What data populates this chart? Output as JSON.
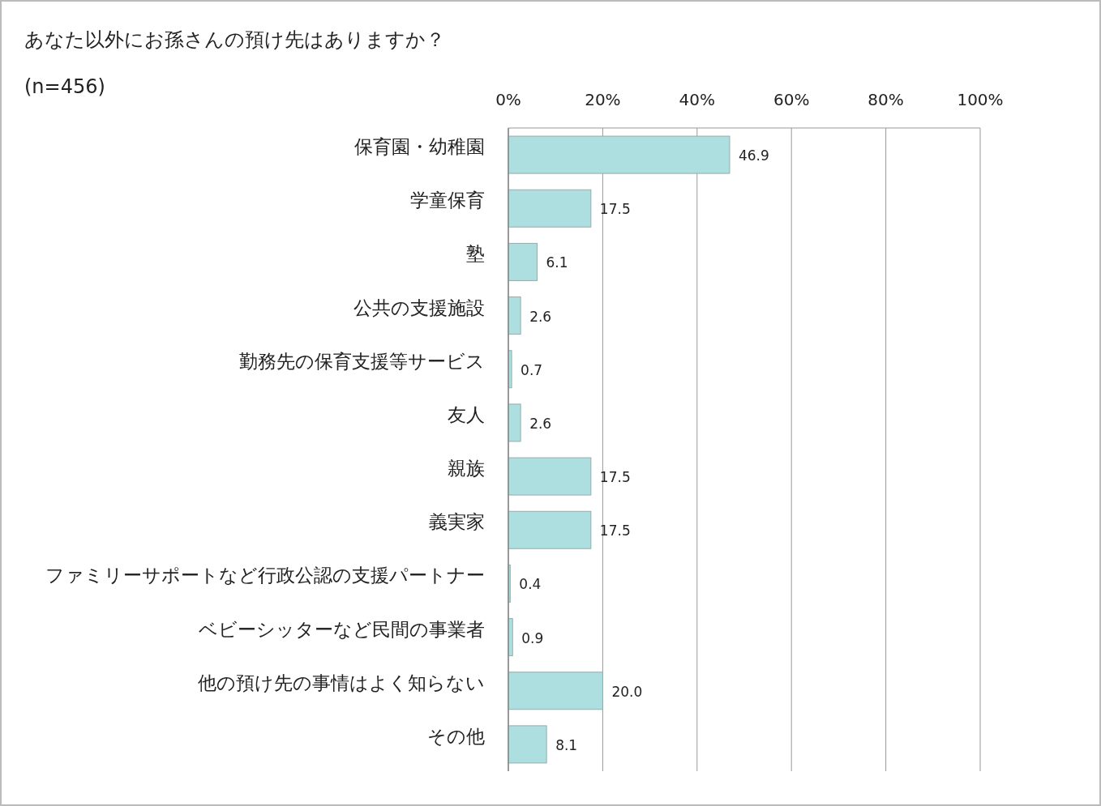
{
  "chart_data": {
    "type": "bar",
    "orientation": "horizontal",
    "title": "あなた以外にお孫さんの預け先はありますか？",
    "subtitle": "(n=456)",
    "categories": [
      "保育園・幼稚園",
      "学童保育",
      "塾",
      "公共の支援施設",
      "勤務先の保育支援等サービス",
      "友人",
      "親族",
      "義実家",
      "ファミリーサポートなど行政公認の支援パートナー",
      "ベビーシッターなど民間の事業者",
      "他の預け先の事情はよく知らない",
      "その他"
    ],
    "values": [
      46.9,
      17.5,
      6.1,
      2.6,
      0.7,
      2.6,
      17.5,
      17.5,
      0.4,
      0.9,
      20.0,
      8.1
    ],
    "color": "#aedfe0",
    "xlim": [
      0,
      100
    ],
    "xticks": [
      {
        "value": 0,
        "label": "0%"
      },
      {
        "value": 20,
        "label": "20%"
      },
      {
        "value": 40,
        "label": "40%"
      },
      {
        "value": 60,
        "label": "60%"
      },
      {
        "value": 80,
        "label": "80%"
      },
      {
        "value": 100,
        "label": "100%"
      }
    ],
    "grid": "x",
    "value_labels": [
      "46.9",
      "17.5",
      "6.1",
      "2.6",
      "0.7",
      "2.6",
      "17.5",
      "17.5",
      "0.4",
      "0.9",
      "20.0",
      "8.1"
    ]
  }
}
